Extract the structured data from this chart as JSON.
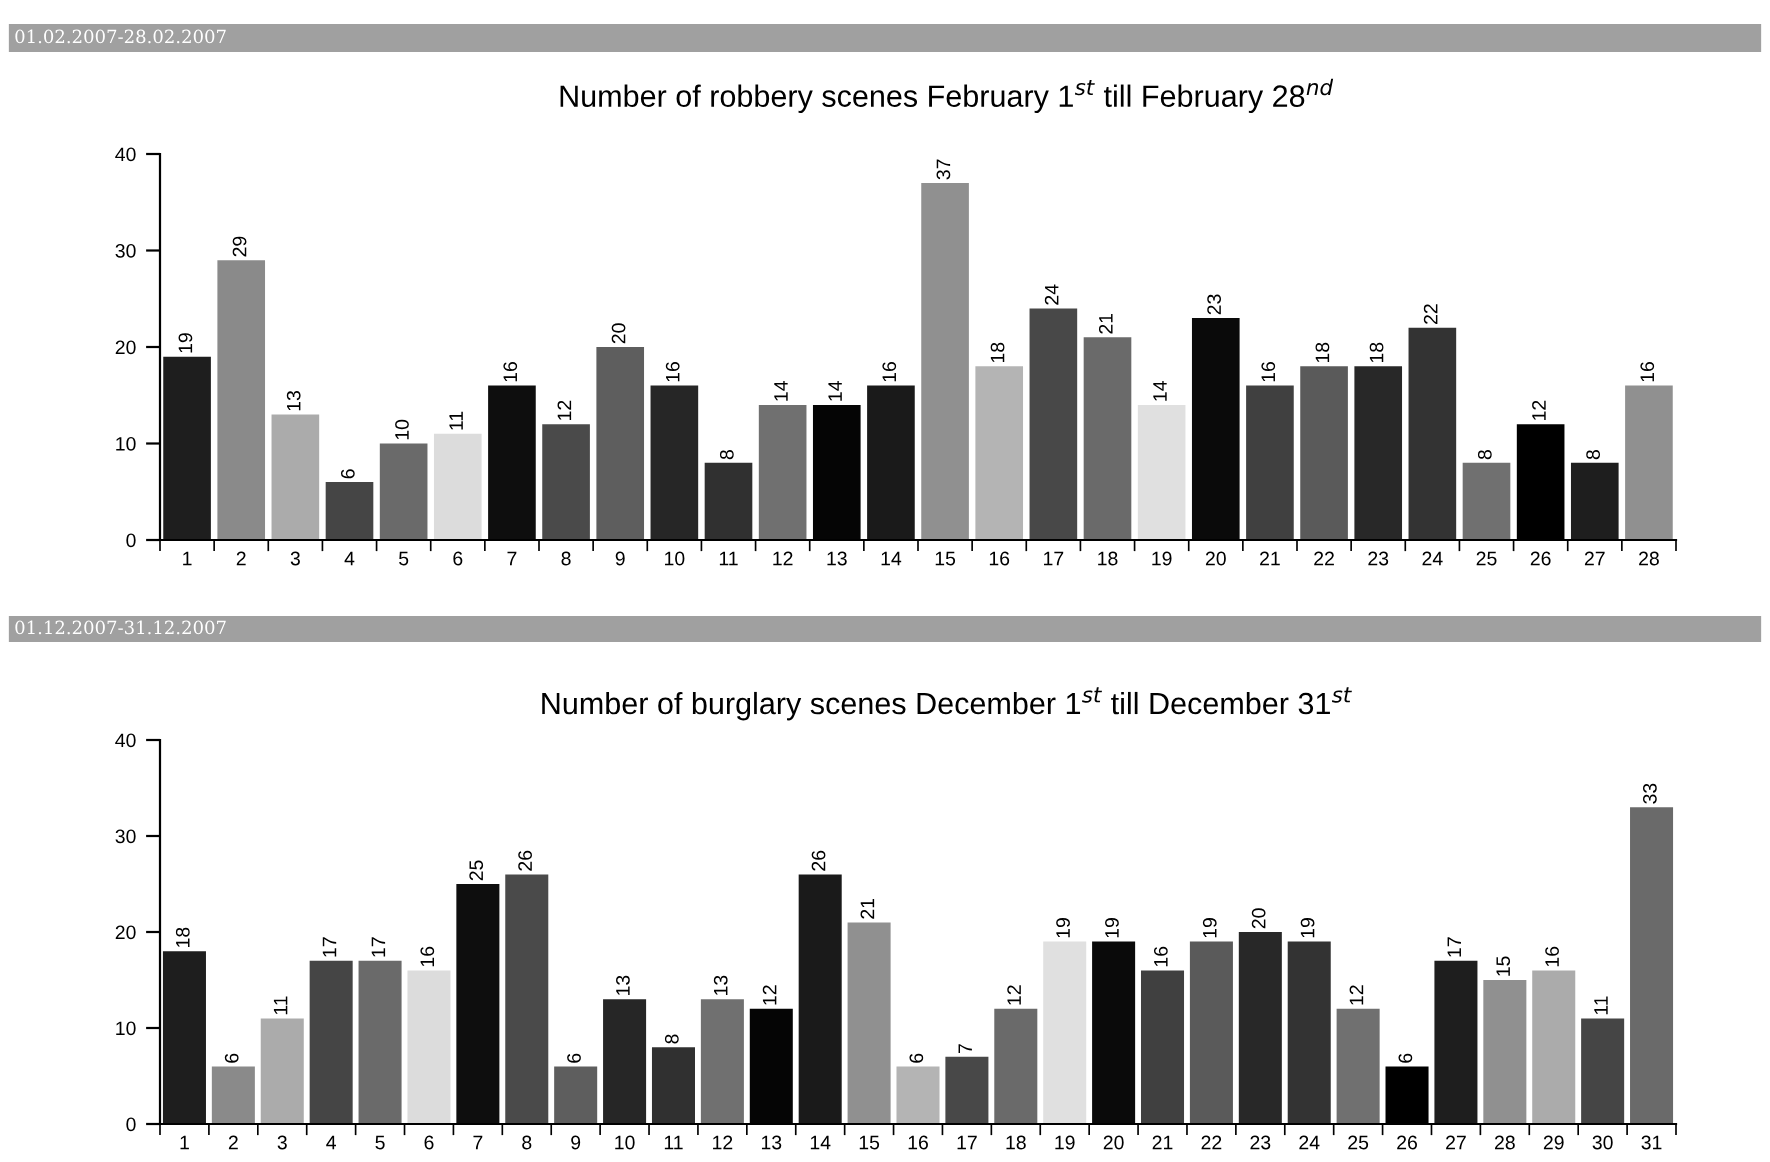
{
  "chart_data": [
    {
      "type": "bar",
      "title": "Number of robbery scenes February 1$^{st}$ till February 28$^{nd}$",
      "annotations": [
        "01.02.2007-28.02.2007"
      ],
      "categories": [
        "1",
        "2",
        "3",
        "4",
        "5",
        "6",
        "7",
        "8",
        "9",
        "10",
        "11",
        "12",
        "13",
        "14",
        "15",
        "16",
        "17",
        "18",
        "19",
        "20",
        "21",
        "22",
        "23",
        "24",
        "25",
        "26",
        "27",
        "28"
      ],
      "values": [
        19,
        29,
        13,
        6,
        10,
        11,
        16,
        12,
        20,
        16,
        8,
        14,
        14,
        16,
        37,
        18,
        24,
        21,
        14,
        23,
        16,
        18,
        18,
        22,
        8,
        12,
        8,
        16
      ],
      "colors": [
        "#1e1e1e",
        "#8a8a8a",
        "#ababab",
        "#454545",
        "#6a6a6a",
        "#dcdcdc",
        "#0e0e0e",
        "#4a4a4a",
        "#5e5e5e",
        "#262626",
        "#303030",
        "#707070",
        "#050505",
        "#1a1a1a",
        "#909090",
        "#b4b4b4",
        "#484848",
        "#6a6a6a",
        "#e0e0e0",
        "#0a0a0a",
        "#404040",
        "#5a5a5a",
        "#282828",
        "#333333",
        "#707070",
        "#000000",
        "#1e1e1e",
        "#909090"
      ],
      "ylim": [
        0,
        40
      ],
      "yticks": [
        0,
        10,
        20,
        30,
        40
      ],
      "data_labels": true,
      "grid": false,
      "legend": false
    },
    {
      "type": "bar",
      "title": "Number of burglary scenes December 1$^{st}$ till December 31$^{st}$",
      "annotations": [
        "01.12.2007-31.12.2007"
      ],
      "categories": [
        "1",
        "2",
        "3",
        "4",
        "5",
        "6",
        "7",
        "8",
        "9",
        "10",
        "11",
        "12",
        "13",
        "14",
        "15",
        "16",
        "17",
        "18",
        "19",
        "20",
        "21",
        "22",
        "23",
        "24",
        "25",
        "26",
        "27",
        "28",
        "29",
        "30",
        "31"
      ],
      "values": [
        18,
        6,
        11,
        17,
        17,
        16,
        25,
        26,
        6,
        13,
        8,
        13,
        12,
        26,
        21,
        6,
        7,
        12,
        19,
        19,
        16,
        19,
        20,
        19,
        12,
        6,
        17,
        15,
        16,
        11,
        33
      ],
      "colors": [
        "#1e1e1e",
        "#8a8a8a",
        "#ababab",
        "#454545",
        "#6a6a6a",
        "#dcdcdc",
        "#0e0e0e",
        "#4a4a4a",
        "#5e5e5e",
        "#262626",
        "#303030",
        "#707070",
        "#050505",
        "#1a1a1a",
        "#909090",
        "#b4b4b4",
        "#484848",
        "#6a6a6a",
        "#e0e0e0",
        "#0a0a0a",
        "#404040",
        "#5a5a5a",
        "#282828",
        "#333333",
        "#707070",
        "#000000",
        "#1e1e1e",
        "#909090",
        "#ababab",
        "#454545",
        "#6a6a6a"
      ],
      "ylim": [
        0,
        40
      ],
      "yticks": [
        0,
        10,
        20,
        30,
        40
      ],
      "data_labels": true,
      "grid": false,
      "legend": false
    }
  ]
}
